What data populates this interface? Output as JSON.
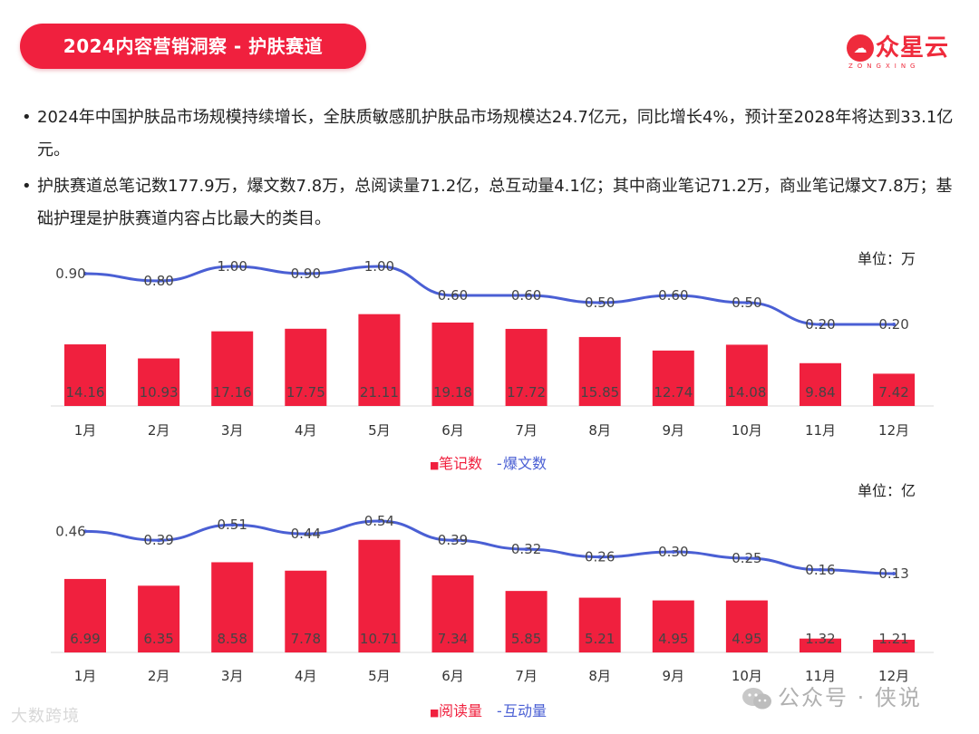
{
  "header": {
    "title": "2024内容营销洞察 - 护肤赛道",
    "logo_mark": "☁",
    "logo_name": "众星云",
    "logo_sub": "ZONGXING"
  },
  "bullets": [
    "2024年中国护肤品市场规模持续增长，全肤质敏感肌护肤品市场规模达24.7亿元，同比增长4%，预计至2028年将达到33.1亿元。",
    "护肤赛道总笔记数177.9万，爆文数7.8万，总阅读量71.2亿，总互动量4.1亿；其中商业笔记71.2万，商业笔记爆文7.8万；基础护理是护肤赛道内容占比最大的类目。"
  ],
  "colors": {
    "bar": "#f0203e",
    "line": "#4a5fd4",
    "brand": "#ef2b3c"
  },
  "chart_data": [
    {
      "type": "bar",
      "unit_label": "单位：万",
      "categories": [
        "1月",
        "2月",
        "3月",
        "4月",
        "5月",
        "6月",
        "7月",
        "8月",
        "9月",
        "10月",
        "11月",
        "12月"
      ],
      "series": [
        {
          "name": "笔记数",
          "type": "bar",
          "values": [
            14.16,
            10.93,
            17.16,
            17.75,
            21.11,
            19.18,
            17.72,
            15.85,
            12.74,
            14.08,
            9.84,
            7.42
          ],
          "labels": [
            "14.16",
            "10.93",
            "17.16",
            "17.75",
            "21.11",
            "19.18",
            "17.72",
            "15.85",
            "12.74",
            "14.08",
            "9.84",
            "7.42"
          ]
        },
        {
          "name": "爆文数",
          "type": "line",
          "values": [
            0.9,
            0.8,
            1.0,
            0.9,
            1.0,
            0.6,
            0.6,
            0.5,
            0.6,
            0.5,
            0.2,
            0.2
          ],
          "labels": [
            "0.90",
            "0.80",
            "1.00",
            "0.90",
            "1.00",
            "0.60",
            "0.60",
            "0.50",
            "0.60",
            "0.50",
            "0.20",
            "0.20"
          ]
        }
      ],
      "legend": [
        {
          "marker": "■",
          "text": "笔记数",
          "color": "#f0203e"
        },
        {
          "marker": "-",
          "text": "爆文数",
          "color": "#4a5fd4"
        }
      ]
    },
    {
      "type": "bar",
      "unit_label": "单位：亿",
      "categories": [
        "1月",
        "2月",
        "3月",
        "4月",
        "5月",
        "6月",
        "7月",
        "8月",
        "9月",
        "10月",
        "11月",
        "12月"
      ],
      "series": [
        {
          "name": "阅读量",
          "type": "bar",
          "values": [
            6.99,
            6.35,
            8.58,
            7.78,
            10.71,
            7.34,
            5.85,
            5.21,
            4.95,
            4.95,
            1.32,
            1.21
          ],
          "labels": [
            "6.99",
            "6.35",
            "8.58",
            "7.78",
            "10.71",
            "7.34",
            "5.85",
            "5.21",
            "4.95",
            "4.95",
            "1.32",
            "1.21"
          ]
        },
        {
          "name": "互动量",
          "type": "line",
          "values": [
            0.46,
            0.39,
            0.51,
            0.44,
            0.54,
            0.39,
            0.32,
            0.26,
            0.3,
            0.25,
            0.16,
            0.13
          ],
          "labels": [
            "0.46",
            "0.39",
            "0.51",
            "0.44",
            "0.54",
            "0.39",
            "0.32",
            "0.26",
            "0.30",
            "0.25",
            "0.16",
            "0.13"
          ]
        }
      ],
      "legend": [
        {
          "marker": "■",
          "text": "阅读量",
          "color": "#f0203e"
        },
        {
          "marker": "-",
          "text": "互动量",
          "color": "#4a5fd4"
        }
      ]
    }
  ],
  "watermarks": {
    "left": "大数跨境",
    "right": "公众号 · 侠说"
  }
}
